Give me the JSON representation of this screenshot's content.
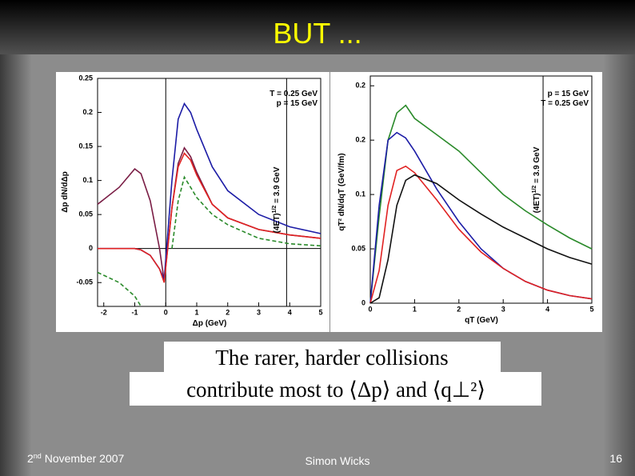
{
  "slide": {
    "title": "BUT ...",
    "caption": [
      "The rarer, harder collisions",
      "contribute most to ⟨Δp⟩ and ⟨q⊥²⟩"
    ],
    "footer": {
      "date": [
        "2",
        "nd",
        " November 2007"
      ],
      "author": "Simon Wicks",
      "page": "16"
    }
  },
  "chart_data": [
    {
      "type": "line",
      "x_label": "Δp (GeV)",
      "y_label": "Δp dN/dΔp",
      "annotations": [
        "T = 0.25 GeV",
        "p = 15 GeV"
      ],
      "vline_label": [
        "(4ET)",
        "1/2",
        " = 3.9 GeV"
      ],
      "vline": 3.9,
      "xlim": [
        -2.2,
        5
      ],
      "ylim": [
        -0.085,
        0.25
      ],
      "xticks": [
        -2,
        -1,
        0,
        1,
        2,
        3,
        4,
        5
      ],
      "yticks": [
        -0.05,
        0,
        0.05,
        0.1,
        0.15,
        0.2,
        0.25
      ],
      "x": [
        -2.2,
        -1.5,
        -1,
        -0.8,
        -0.5,
        -0.2,
        -0.05,
        0.2,
        0.4,
        0.6,
        0.8,
        1,
        1.5,
        2,
        3,
        4,
        5
      ],
      "series": [
        {
          "color": "#7a1d45",
          "dash": false,
          "values": [
            0.065,
            0.09,
            0.117,
            0.11,
            0.07,
            0.0,
            -0.048,
            0.06,
            0.125,
            0.148,
            0.135,
            0.112,
            0.065,
            0.045,
            0.028,
            0.02,
            0.015
          ]
        },
        {
          "color": "#1c1ca6",
          "dash": false,
          "values": [
            0,
            0,
            0,
            -0.002,
            -0.01,
            -0.03,
            -0.045,
            0.1,
            0.19,
            0.213,
            0.2,
            0.175,
            0.12,
            0.085,
            0.05,
            0.032,
            0.022
          ]
        },
        {
          "color": "#e02222",
          "dash": false,
          "values": [
            0,
            0,
            0,
            -0.002,
            -0.01,
            -0.03,
            -0.05,
            0.06,
            0.12,
            0.14,
            0.13,
            0.108,
            0.065,
            0.045,
            0.028,
            0.02,
            0.015
          ]
        },
        {
          "color": "#2a8a2a",
          "dash": true,
          "values": [
            -0.035,
            -0.05,
            -0.07,
            -0.085,
            null,
            null,
            null,
            0.0,
            0.07,
            0.105,
            0.09,
            0.075,
            0.05,
            0.035,
            0.015,
            0.007,
            0.004
          ]
        }
      ]
    },
    {
      "type": "line",
      "x_label": "qT (GeV)",
      "y_label": "qT² dN/dqT (GeV/fm)",
      "annotations": [
        "p = 15 GeV",
        "T = 0.25 GeV"
      ],
      "vline_label": [
        "(4ET)",
        "1/2",
        " = 3.9 GeV"
      ],
      "vline": 3.9,
      "xlim": [
        0,
        5
      ],
      "ylim": [
        0,
        0.209
      ],
      "xticks": [
        0,
        1,
        2,
        3,
        4,
        5
      ],
      "yticks": [
        0,
        0.05,
        0.1,
        {
          "value": 0.15,
          "label": "0.2"
        },
        0.2
      ],
      "x": [
        0,
        0.2,
        0.4,
        0.6,
        0.8,
        1,
        1.5,
        2,
        2.5,
        3,
        3.5,
        4,
        4.5,
        5
      ],
      "series": [
        {
          "color": "#2a8a2a",
          "dash": false,
          "values": [
            0,
            0.08,
            0.15,
            0.175,
            0.182,
            0.17,
            0.155,
            0.14,
            0.12,
            0.1,
            0.085,
            0.072,
            0.06,
            0.05
          ]
        },
        {
          "color": "#1c1ca6",
          "dash": false,
          "values": [
            0,
            0.09,
            0.15,
            0.157,
            0.152,
            0.14,
            0.105,
            0.075,
            0.05,
            0.032,
            0.02,
            0.012,
            0.007,
            0.004
          ]
        },
        {
          "color": "#e02222",
          "dash": false,
          "values": [
            0,
            0.03,
            0.09,
            0.122,
            0.126,
            0.12,
            0.095,
            0.068,
            0.047,
            0.032,
            0.02,
            0.012,
            0.007,
            0.004
          ]
        },
        {
          "color": "#111111",
          "dash": false,
          "values": [
            0,
            0.005,
            0.04,
            0.09,
            0.113,
            0.118,
            0.11,
            0.095,
            0.082,
            0.07,
            0.06,
            0.05,
            0.042,
            0.036
          ]
        }
      ]
    }
  ]
}
